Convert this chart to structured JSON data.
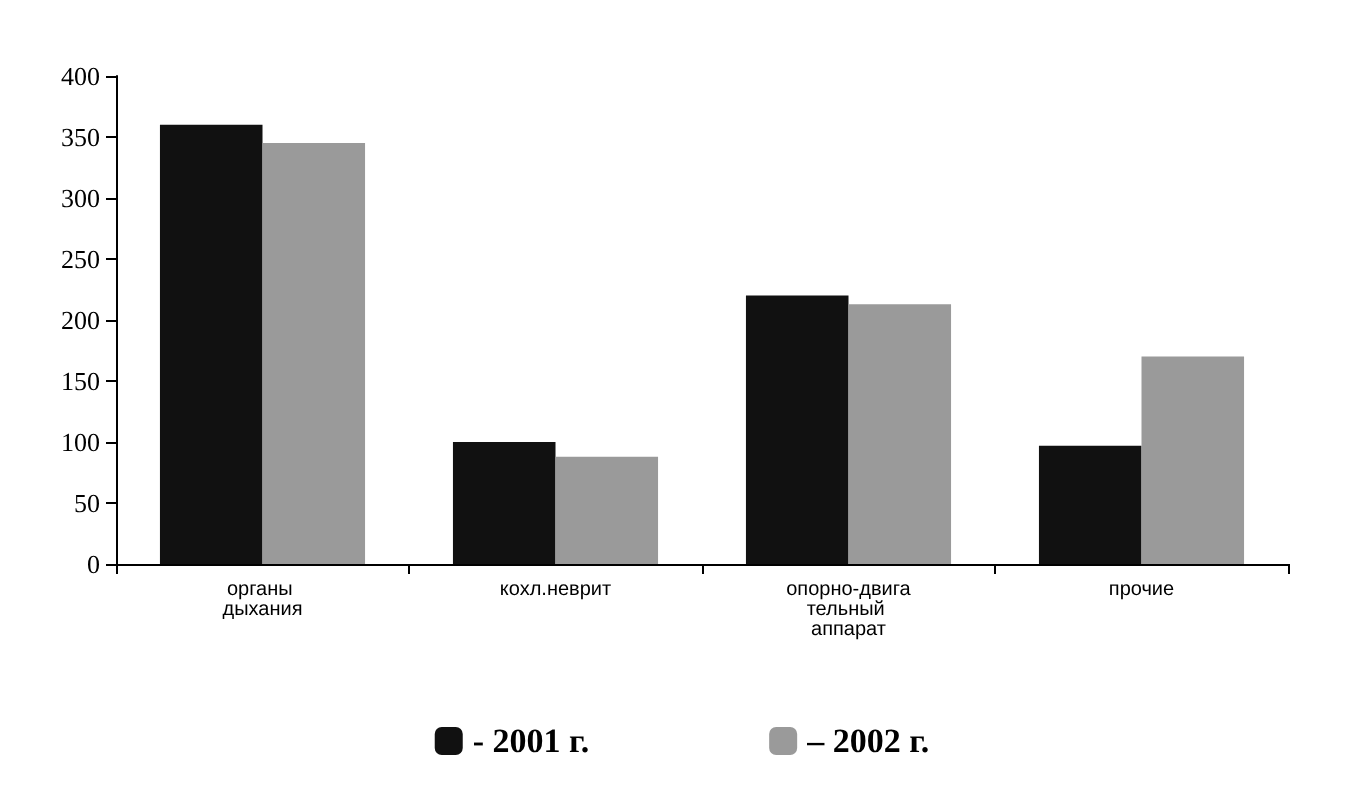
{
  "chart_data": {
    "type": "bar",
    "categories": [
      "органы дыхания",
      "кохл.неврит",
      "опорно-двигательный аппарат",
      "прочие"
    ],
    "series": [
      {
        "name": "- 2001 г.",
        "color": "#111111",
        "values": [
          360,
          100,
          220,
          97
        ]
      },
      {
        "name": "– 2002 г.",
        "color": "#9a9a9a",
        "values": [
          345,
          88,
          213,
          170
        ]
      }
    ],
    "ylim": [
      0,
      400
    ],
    "yticks": [
      0,
      50,
      100,
      150,
      200,
      250,
      300,
      350,
      400
    ],
    "grid": false,
    "legend": "bottom"
  }
}
